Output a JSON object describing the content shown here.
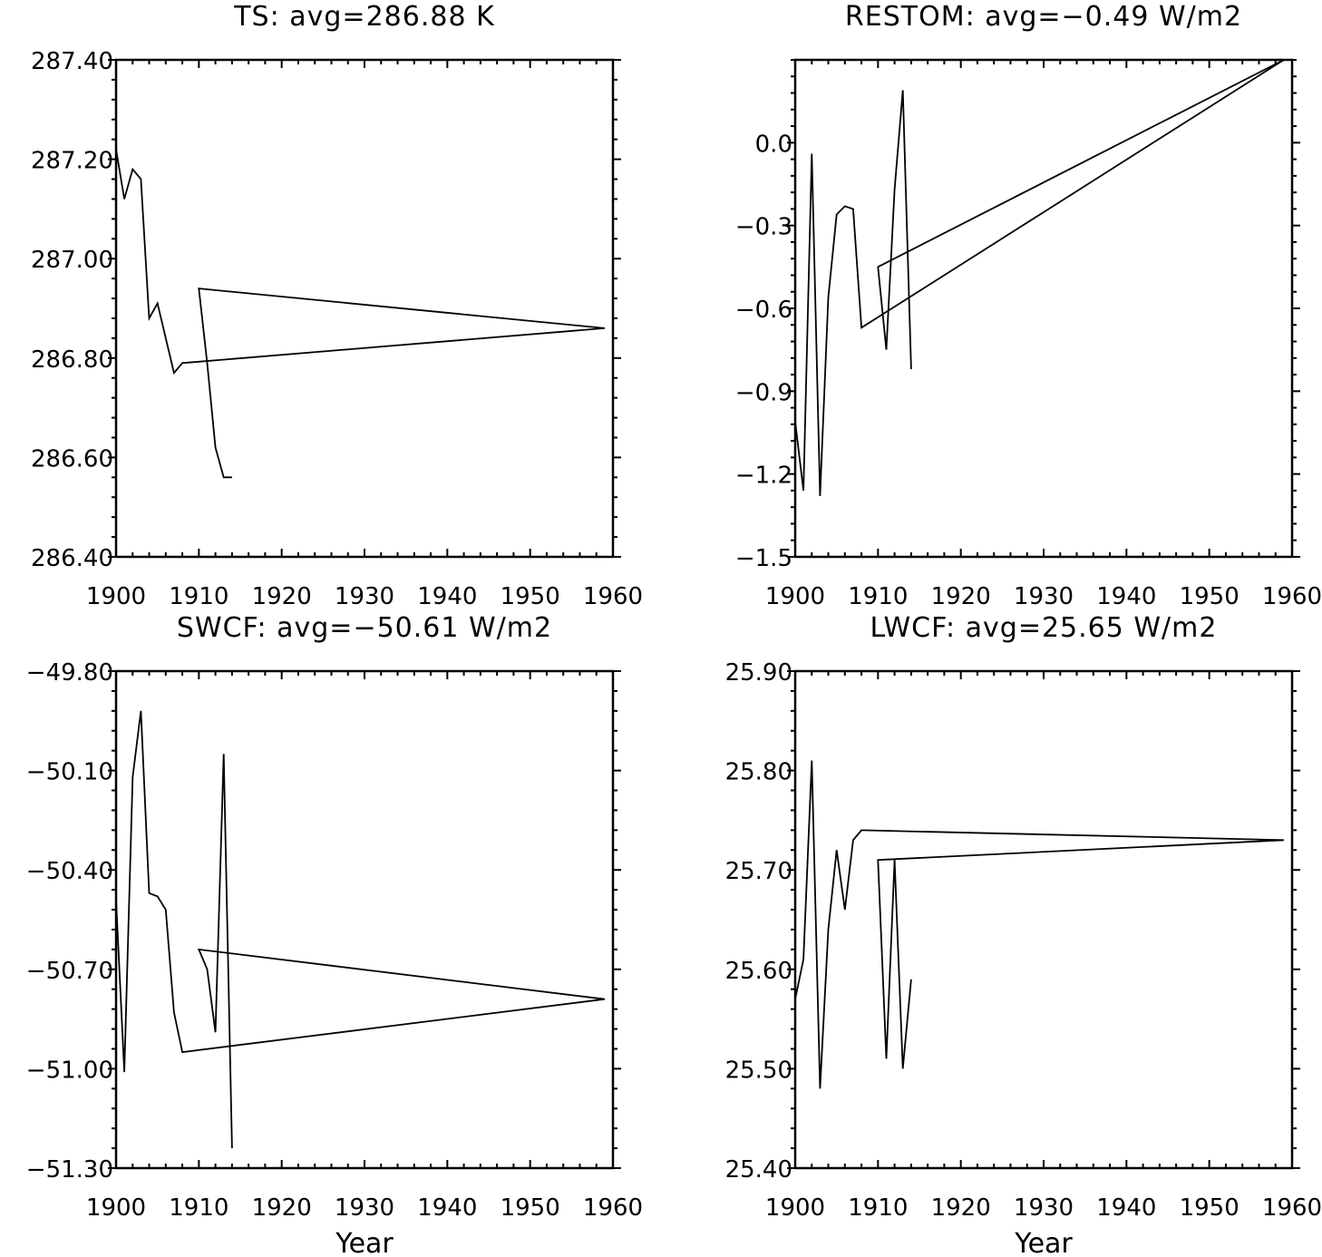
{
  "figure": {
    "colors": {
      "line": "#000000",
      "background": "#ffffff"
    }
  },
  "chart_data": [
    {
      "type": "line",
      "title": "TS: avg=286.88 K",
      "xlabel": "",
      "ylabel": "",
      "xlim": [
        1900,
        1960
      ],
      "ylim": [
        286.4,
        287.4
      ],
      "xticks": [
        1900,
        1910,
        1920,
        1930,
        1940,
        1950,
        1960
      ],
      "xtick_labels": [
        "1900",
        "1910",
        "1920",
        "1930",
        "1940",
        "1950",
        "1960"
      ],
      "yticks": [
        286.4,
        286.6,
        286.8,
        287.0,
        287.2,
        287.4
      ],
      "ytick_labels": [
        "286.40",
        "286.60",
        "286.80",
        "287.00",
        "287.20",
        "287.40"
      ],
      "series": [
        {
          "name": "TS",
          "x": [
            1900,
            1901,
            1902,
            1903,
            1904,
            1905,
            1906,
            1907,
            1908,
            1959,
            1910,
            1911,
            1912,
            1913,
            1914
          ],
          "y": [
            287.22,
            287.12,
            287.18,
            287.16,
            286.88,
            286.91,
            286.84,
            286.77,
            286.79,
            286.86,
            286.94,
            286.79,
            286.62,
            286.56,
            286.56
          ]
        }
      ]
    },
    {
      "type": "line",
      "title": "RESTOM: avg=−0.49 W/m2",
      "xlabel": "",
      "ylabel": "",
      "xlim": [
        1900,
        1960
      ],
      "ylim": [
        -1.5,
        0.3
      ],
      "xticks": [
        1900,
        1910,
        1920,
        1930,
        1940,
        1950,
        1960
      ],
      "xtick_labels": [
        "1900",
        "1910",
        "1920",
        "1930",
        "1940",
        "1950",
        "1960"
      ],
      "yticks": [
        -1.5,
        -1.2,
        -0.9,
        -0.6,
        -0.3,
        0.0
      ],
      "ytick_labels": [
        "−1.5",
        "−1.2",
        "−0.9",
        "−0.6",
        "−0.3",
        "0.0"
      ],
      "series": [
        {
          "name": "RESTOM",
          "x": [
            1900,
            1901,
            1902,
            1903,
            1904,
            1905,
            1906,
            1907,
            1908,
            1959,
            1910,
            1911,
            1912,
            1913,
            1914
          ],
          "y": [
            -1.01,
            -1.26,
            -0.04,
            -1.28,
            -0.56,
            -0.26,
            -0.23,
            -0.24,
            -0.67,
            0.3,
            -0.45,
            -0.75,
            -0.17,
            0.19,
            -0.82
          ]
        }
      ]
    },
    {
      "type": "line",
      "title": "SWCF: avg=−50.61 W/m2",
      "xlabel": "Year",
      "ylabel": "",
      "xlim": [
        1900,
        1960
      ],
      "ylim": [
        -51.3,
        -49.8
      ],
      "xticks": [
        1900,
        1910,
        1920,
        1930,
        1940,
        1950,
        1960
      ],
      "xtick_labels": [
        "1900",
        "1910",
        "1920",
        "1930",
        "1940",
        "1950",
        "1960"
      ],
      "yticks": [
        -51.3,
        -51.0,
        -50.7,
        -50.4,
        -50.1,
        -49.8
      ],
      "ytick_labels": [
        "−51.30",
        "−51.00",
        "−50.70",
        "−50.40",
        "−50.10",
        "−49.80"
      ],
      "series": [
        {
          "name": "SWCF",
          "x": [
            1900,
            1901,
            1902,
            1903,
            1904,
            1905,
            1906,
            1907,
            1908,
            1959,
            1910,
            1911,
            1912,
            1913,
            1914
          ],
          "y": [
            -50.49,
            -51.01,
            -50.12,
            -49.92,
            -50.47,
            -50.48,
            -50.52,
            -50.83,
            -50.95,
            -50.79,
            -50.64,
            -50.7,
            -50.89,
            -50.05,
            -51.24
          ]
        }
      ]
    },
    {
      "type": "line",
      "title": "LWCF: avg=25.65 W/m2",
      "xlabel": "Year",
      "ylabel": "",
      "xlim": [
        1900,
        1960
      ],
      "ylim": [
        25.4,
        25.9
      ],
      "xticks": [
        1900,
        1910,
        1920,
        1930,
        1940,
        1950,
        1960
      ],
      "xtick_labels": [
        "1900",
        "1910",
        "1920",
        "1930",
        "1940",
        "1950",
        "1960"
      ],
      "yticks": [
        25.4,
        25.5,
        25.6,
        25.7,
        25.8,
        25.9
      ],
      "ytick_labels": [
        "25.40",
        "25.50",
        "25.60",
        "25.70",
        "25.80",
        "25.90"
      ],
      "series": [
        {
          "name": "LWCF",
          "x": [
            1900,
            1901,
            1902,
            1903,
            1904,
            1905,
            1906,
            1907,
            1908,
            1959,
            1910,
            1911,
            1912,
            1913,
            1914
          ],
          "y": [
            25.57,
            25.61,
            25.81,
            25.48,
            25.64,
            25.72,
            25.66,
            25.73,
            25.74,
            25.73,
            25.71,
            25.51,
            25.71,
            25.5,
            25.59
          ]
        }
      ]
    }
  ]
}
